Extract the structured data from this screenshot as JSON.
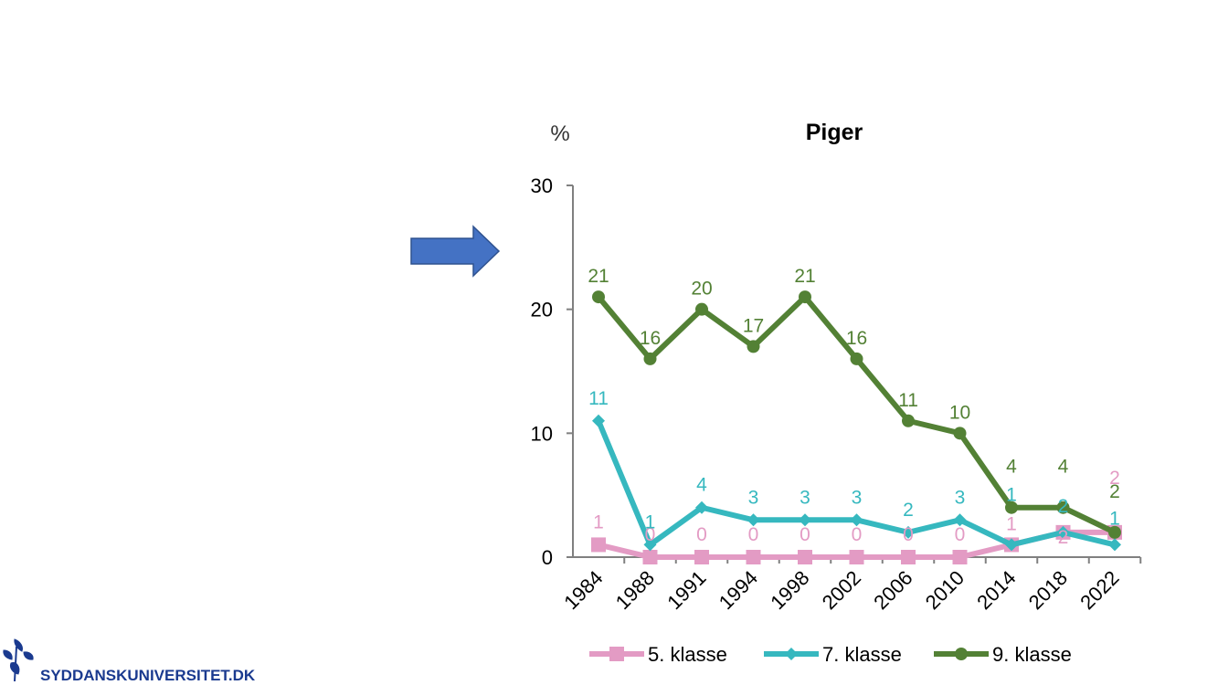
{
  "colors": {
    "arrow": "#4472c4",
    "logo": "#1a3a8f"
  },
  "logo": {
    "text": "SYDDANSKUNIVERSITET.DK"
  },
  "chart_data": {
    "type": "line",
    "title": "Piger",
    "unit_label": "%",
    "categories": [
      "1984",
      "1988",
      "1991",
      "1994",
      "1998",
      "2002",
      "2006",
      "2010",
      "2014",
      "2018",
      "2022"
    ],
    "ylim": [
      0,
      30
    ],
    "yticks": [
      0,
      10,
      20,
      30
    ],
    "grid": false,
    "legend_position": "bottom",
    "series": [
      {
        "name": "5. klasse",
        "color": "#e39bc4",
        "marker": "square",
        "values": [
          1,
          0,
          0,
          0,
          0,
          0,
          0,
          0,
          1,
          2,
          2
        ],
        "labels": [
          "1",
          "0",
          "0",
          "0",
          "0",
          "0",
          "0",
          "0",
          "1",
          "2",
          "2"
        ]
      },
      {
        "name": "7. klasse",
        "color": "#36b8bf",
        "marker": "diamond",
        "values": [
          11,
          1,
          4,
          3,
          3,
          3,
          2,
          3,
          1,
          2,
          1
        ],
        "labels": [
          "11",
          "1",
          "4",
          "3",
          "3",
          "3",
          "2",
          "3",
          "1",
          "2",
          "1"
        ]
      },
      {
        "name": "9. klasse",
        "color": "#538135",
        "marker": "circle",
        "values": [
          21,
          16,
          20,
          17,
          21,
          16,
          11,
          10,
          4,
          4,
          2
        ],
        "labels": [
          "21",
          "16",
          "20",
          "17",
          "21",
          "16",
          "11",
          "10",
          "4",
          "4",
          "2"
        ]
      }
    ]
  }
}
